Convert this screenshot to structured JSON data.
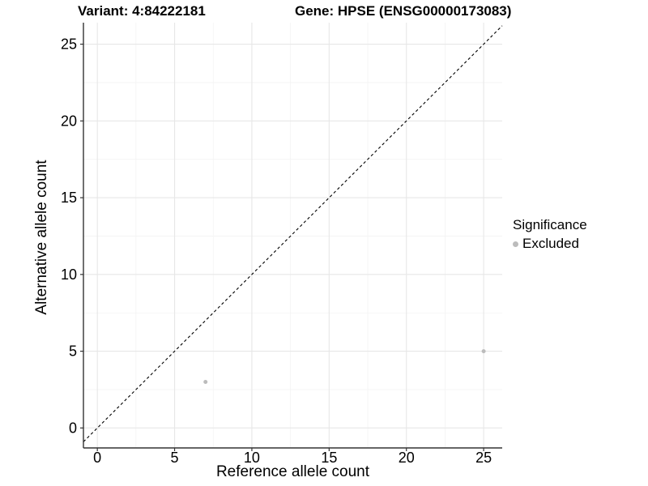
{
  "chart_data": {
    "type": "scatter",
    "title_left": "Variant: 4:84222181",
    "title_right": "Gene: HPSE (ENSG00000173083)",
    "xlabel": "Reference allele count",
    "ylabel": "Alternative allele count",
    "xlim": [
      -0.9,
      26.2
    ],
    "ylim": [
      -1.3,
      26.4
    ],
    "x_ticks": [
      0,
      5,
      10,
      15,
      20,
      25
    ],
    "y_ticks": [
      0,
      5,
      10,
      15,
      20,
      25
    ],
    "x_minor_ticks": [
      2.5,
      7.5,
      12.5,
      17.5,
      22.5
    ],
    "y_minor_ticks": [
      2.5,
      7.5,
      12.5,
      17.5,
      22.5
    ],
    "grid": "major+minor",
    "reference_line": {
      "kind": "identity y=x",
      "style": "dashed"
    },
    "series": [
      {
        "name": "Excluded",
        "points": [
          {
            "x": 7,
            "y": 3
          },
          {
            "x": 25,
            "y": 5
          }
        ]
      }
    ],
    "legend": {
      "title": "Significance",
      "position": "right",
      "items": [
        {
          "label": "Excluded",
          "swatch": "dot"
        }
      ]
    },
    "colors": {
      "point": "#bcbcbc",
      "legend_dot": "#bcbcbc",
      "grid_major": "#e7e7e7",
      "grid_minor": "#f3f3f3",
      "axis_line": "#333333",
      "tick_mark": "#333333",
      "reference_line": "#000000",
      "text": "#000000",
      "background": "#ffffff"
    }
  }
}
